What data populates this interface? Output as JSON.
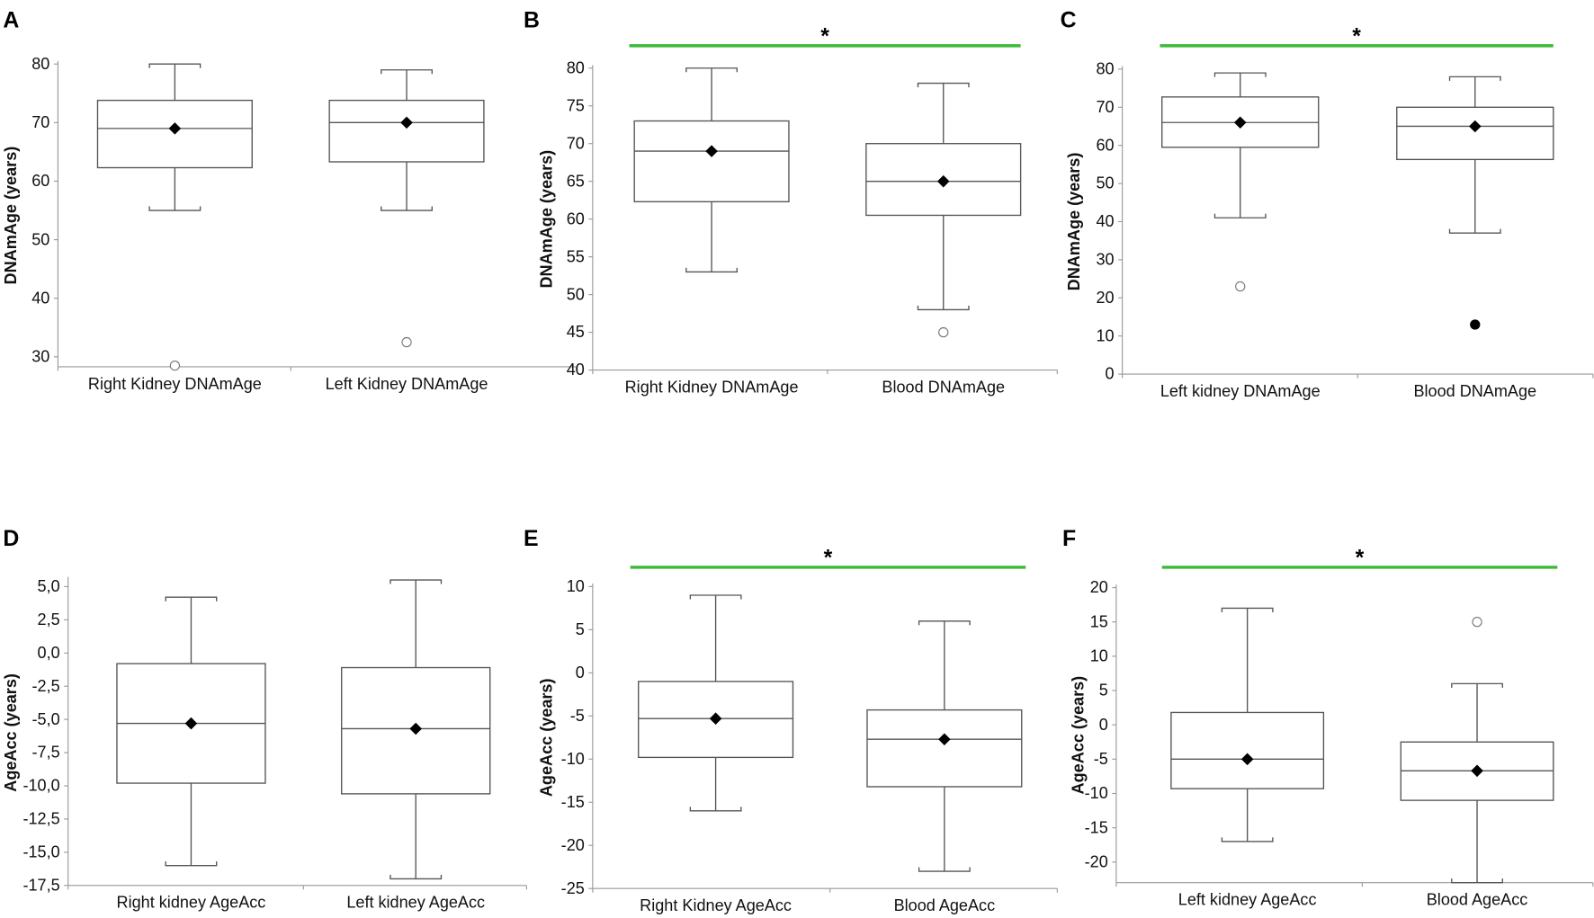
{
  "colors": {
    "significance_bar": "#3dba3a",
    "box_stroke": "#555555",
    "mean_marker": "#000000"
  },
  "chart_data": [
    {
      "panel": "A",
      "type": "box",
      "ylabel": "DNAmAge (years)",
      "ylim": [
        28.3,
        80
      ],
      "ticks": [
        30,
        40,
        50,
        60,
        70,
        80
      ],
      "tick_labels": [
        "30",
        "40",
        "50",
        "60",
        "70",
        "80"
      ],
      "significance": null,
      "groups": [
        {
          "label": "Right Kidney DNAmAge",
          "min": 55,
          "q1": 62.3,
          "median": 69,
          "q3": 73.8,
          "max": 80,
          "mean": 69,
          "outliers": [
            {
              "value": 28.5,
              "filled": false
            }
          ]
        },
        {
          "label": "Left Kidney DNAmAge",
          "min": 55,
          "q1": 63.3,
          "median": 70,
          "q3": 73.8,
          "max": 79,
          "mean": 70,
          "outliers": [
            {
              "value": 32.5,
              "filled": false
            }
          ]
        }
      ]
    },
    {
      "panel": "B",
      "type": "box",
      "ylabel": "DNAmAge (years)",
      "ylim": [
        40,
        80
      ],
      "ticks": [
        40,
        45,
        50,
        55,
        60,
        65,
        70,
        75,
        80
      ],
      "tick_labels": [
        "40",
        "45",
        "50",
        "55",
        "60",
        "65",
        "70",
        "75",
        "80"
      ],
      "significance": "*",
      "groups": [
        {
          "label": "Right Kidney  DNAmAge",
          "min": 53,
          "q1": 62.3,
          "median": 69,
          "q3": 73,
          "max": 80,
          "mean": 69,
          "outliers": []
        },
        {
          "label": "Blood DNAmAge",
          "min": 48,
          "q1": 60.5,
          "median": 65,
          "q3": 70,
          "max": 78,
          "mean": 65,
          "outliers": [
            {
              "value": 45,
              "filled": false
            }
          ]
        }
      ]
    },
    {
      "panel": "C",
      "type": "box",
      "ylabel": "DNAmAge (years)",
      "ylim": [
        0,
        80
      ],
      "ticks": [
        0,
        10,
        20,
        30,
        40,
        50,
        60,
        70,
        80
      ],
      "tick_labels": [
        "0",
        "10",
        "20",
        "30",
        "40",
        "50",
        "60",
        "70",
        "80"
      ],
      "significance": "*",
      "groups": [
        {
          "label": "Left kidney DNAmAge",
          "min": 41,
          "q1": 59.5,
          "median": 66,
          "q3": 72.7,
          "max": 79,
          "mean": 66,
          "outliers": [
            {
              "value": 23,
              "filled": false
            }
          ]
        },
        {
          "label": "Blood DNAmAge",
          "min": 37,
          "q1": 56.3,
          "median": 65,
          "q3": 70,
          "max": 78,
          "mean": 65,
          "outliers": [
            {
              "value": 13,
              "filled": true
            }
          ]
        }
      ]
    },
    {
      "panel": "D",
      "type": "box",
      "ylabel": "AgeAcc (years)",
      "ylim": [
        -17.5,
        5.5
      ],
      "ticks": [
        5,
        2.5,
        0,
        -2.5,
        -5,
        -7.5,
        -10,
        -12.5,
        -15,
        -17.5
      ],
      "tick_labels": [
        "5,0",
        "2,5",
        "0,0",
        "-2,5",
        "-5,0",
        "-7,5",
        "-10,0",
        "-12,5",
        "-15,0",
        "-17,5"
      ],
      "significance": null,
      "groups": [
        {
          "label": "Right kidney  AgeAcc",
          "min": -16,
          "q1": -9.8,
          "median": -5.3,
          "q3": -0.8,
          "max": 4.2,
          "mean": -5.3,
          "outliers": []
        },
        {
          "label": "Left kidney AgeAcc",
          "min": -17,
          "q1": -10.6,
          "median": -5.7,
          "q3": -1.1,
          "max": 5.5,
          "mean": -5.7,
          "outliers": []
        }
      ]
    },
    {
      "panel": "E",
      "type": "box",
      "ylabel": "AgeAcc (years)",
      "ylim": [
        -25,
        10
      ],
      "ticks": [
        10,
        5,
        0,
        -5,
        -10,
        -15,
        -20,
        -25
      ],
      "tick_labels": [
        "10",
        "5",
        "0",
        "-5",
        "-10",
        "-15",
        "-20",
        "-25"
      ],
      "significance": "*",
      "groups": [
        {
          "label": "Right Kidney AgeAcc",
          "min": -16,
          "q1": -9.8,
          "median": -5.3,
          "q3": -1.0,
          "max": 9,
          "mean": -5.3,
          "outliers": []
        },
        {
          "label": "Blood AgeAcc",
          "min": -23,
          "q1": -13.2,
          "median": -7.7,
          "q3": -4.3,
          "max": 6,
          "mean": -7.7,
          "outliers": []
        }
      ]
    },
    {
      "panel": "F",
      "type": "box",
      "ylabel": "AgeAcc (years)",
      "ylim": [
        -23,
        20
      ],
      "ticks": [
        20,
        15,
        10,
        5,
        0,
        -5,
        -10,
        -15,
        -20
      ],
      "tick_labels": [
        "20",
        "15",
        "10",
        "5",
        "0",
        "-5",
        "-10",
        "-15",
        "-20"
      ],
      "significance": "*",
      "groups": [
        {
          "label": "Left kidney AgeAcc",
          "min": -17,
          "q1": -9.3,
          "median": -5,
          "q3": 1.8,
          "max": 17,
          "mean": -5,
          "outliers": []
        },
        {
          "label": "Blood AgeAcc",
          "min": -23,
          "q1": -11,
          "median": -6.7,
          "q3": -2.5,
          "max": 6,
          "mean": -6.7,
          "outliers": [
            {
              "value": 15,
              "filled": false
            }
          ]
        }
      ]
    }
  ]
}
